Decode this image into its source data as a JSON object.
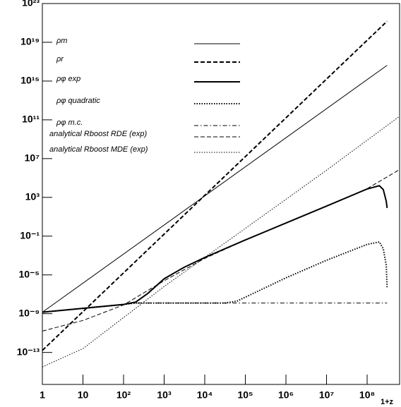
{
  "chart_data": {
    "type": "line",
    "xlabel": "1+z",
    "log_x": true,
    "log_y": true,
    "legend": "top-left",
    "xlim": [
      1,
      630000000
    ],
    "ylim": [
      5e-17,
      1e+23
    ],
    "xticks": [
      1,
      10,
      {
        "value": 100,
        "label": "10²"
      },
      {
        "value": 1000,
        "label": "10³"
      },
      {
        "value": 10000,
        "label": "10⁴"
      },
      {
        "value": 100000,
        "label": "10⁵"
      },
      {
        "value": 1000000,
        "label": "10⁶"
      },
      {
        "value": 10000000,
        "label": "10⁷"
      },
      {
        "value": 100000000,
        "label": "10⁸"
      }
    ],
    "yticks": [
      {
        "value": 1e+23,
        "label": "10²³"
      },
      {
        "value": 1e+19,
        "label": "10¹⁹"
      },
      {
        "value": 1000000000000000.0,
        "label": "10¹⁵"
      },
      {
        "value": 100000000000.0,
        "label": "10¹¹"
      },
      {
        "value": 10000000.0,
        "label": "10⁷"
      },
      {
        "value": 1000,
        "label": "10³"
      },
      {
        "value": 0.1,
        "label": "10⁻¹"
      },
      {
        "value": 1e-05,
        "label": "10⁻⁵"
      },
      {
        "value": 1e-09,
        "label": "10⁻⁹"
      },
      {
        "value": 1e-13,
        "label": "10⁻¹³"
      }
    ],
    "series": [
      {
        "name": "ρm",
        "color": "#000000",
        "linestyle": "solid",
        "width": 1,
        "x": [
          1,
          310000000
        ],
        "values": [
          1.41e-09,
          4.2e+16
        ]
      },
      {
        "name": "ρr",
        "color": "#000000",
        "linestyle": "dashed",
        "width": 2,
        "x": [
          1,
          310000000
        ],
        "values": [
          1.6e-13,
          1.48e+21
        ]
      },
      {
        "name": "ρφ exp",
        "color": "#000000",
        "linestyle": "solid",
        "width": 2,
        "x": [
          1,
          10,
          100,
          200,
          400,
          1000,
          3160,
          10000,
          100000,
          1000000,
          10000000,
          100000000,
          200000000,
          250000000,
          295000000,
          310000000
        ],
        "values": [
          1.41e-09,
          3.55e-09,
          8.9e-09,
          1.58e-08,
          1.26e-07,
          3.98e-06,
          6.3e-05,
          0.00063,
          0.04,
          2.24,
          126,
          7400,
          15800,
          6300,
          400,
          79
        ]
      },
      {
        "name": "ρφ quadratic",
        "color": "#000000",
        "linestyle": "dotted",
        "width": 2,
        "x": [
          1,
          10,
          100,
          200,
          31600,
          63000,
          100000,
          1000000,
          10000000,
          100000000,
          200000000,
          250000000,
          295000000,
          310000000
        ],
        "values": [
          1.41e-09,
          3.55e-09,
          8.9e-09,
          1.26e-08,
          1.26e-08,
          2e-08,
          5e-08,
          5e-06,
          0.00032,
          0.014,
          0.025,
          0.005,
          0.0001,
          5e-07
        ]
      },
      {
        "name": "ρφ m.c.",
        "color": "#000000",
        "linestyle": "dashdot",
        "width": 1,
        "x": [
          1,
          10,
          100,
          200,
          310000000
        ],
        "values": [
          1.41e-09,
          3.55e-09,
          8.9e-09,
          1.26e-08,
          1.26e-08
        ]
      },
      {
        "name": "analytical Rboost RDE (exp)",
        "color": "#000000",
        "linestyle": "dashed",
        "width": 1,
        "x": [
          1,
          10,
          100,
          1000,
          10000,
          100000,
          1000000,
          10000000,
          100000000,
          630000000
        ],
        "values": [
          1.6e-11,
          2e-10,
          7.9e-09,
          2.5e-06,
          0.0005,
          0.04,
          2.24,
          126,
          7900,
          740000
        ]
      },
      {
        "name": "analytical Rboost MDE (exp)",
        "color": "#000000",
        "linestyle": "dotted",
        "width": 1,
        "x": [
          1,
          10,
          100,
          1000,
          10000,
          100000,
          1000000,
          10000000,
          100000000,
          630000000
        ],
        "values": [
          3.2e-15,
          2.5e-13,
          4e-10,
          6.3e-07,
          0.00063,
          0.63,
          630,
          630000,
          790000000,
          230000000000
        ]
      }
    ]
  }
}
